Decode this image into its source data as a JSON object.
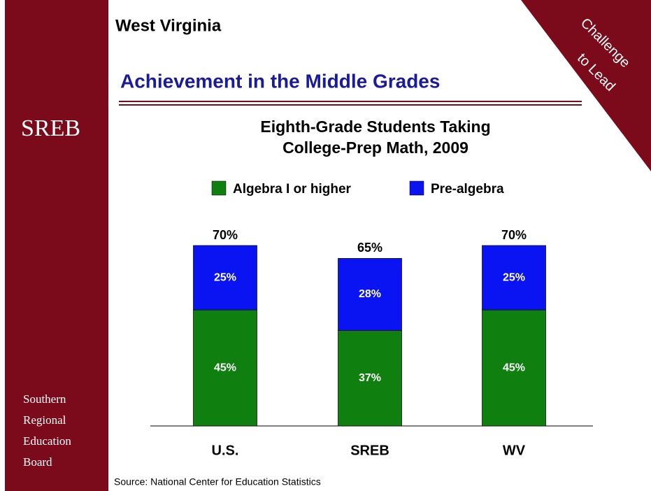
{
  "header": {
    "state": "West Virginia",
    "heading": "Achievement in the Middle Grades"
  },
  "corner": [
    "Challenge",
    "to Lead"
  ],
  "sidebar": {
    "logo": "SREB",
    "lines": [
      "Southern",
      "Regional",
      "Education",
      "Board"
    ]
  },
  "source": "Source: National Center for Education Statistics",
  "chart_data": {
    "type": "stacked-bar",
    "title": [
      "Eighth-Grade Students Taking",
      "College-Prep Math, 2009"
    ],
    "categories": [
      "U.S.",
      "SREB",
      "WV"
    ],
    "series": [
      {
        "name": "Algebra I or higher",
        "color": "#0f800f",
        "values": [
          45,
          37,
          45
        ],
        "value_labels": [
          "45%",
          "37%",
          "45%"
        ]
      },
      {
        "name": "Pre-algebra",
        "color": "#0a14f2",
        "values": [
          25,
          28,
          25
        ],
        "value_labels": [
          "25%",
          "28%",
          "25%"
        ]
      }
    ],
    "totals": {
      "values": [
        70,
        65,
        70
      ],
      "value_labels": [
        "70%",
        "65%",
        "70%"
      ]
    },
    "ylim": [
      0,
      70
    ]
  }
}
